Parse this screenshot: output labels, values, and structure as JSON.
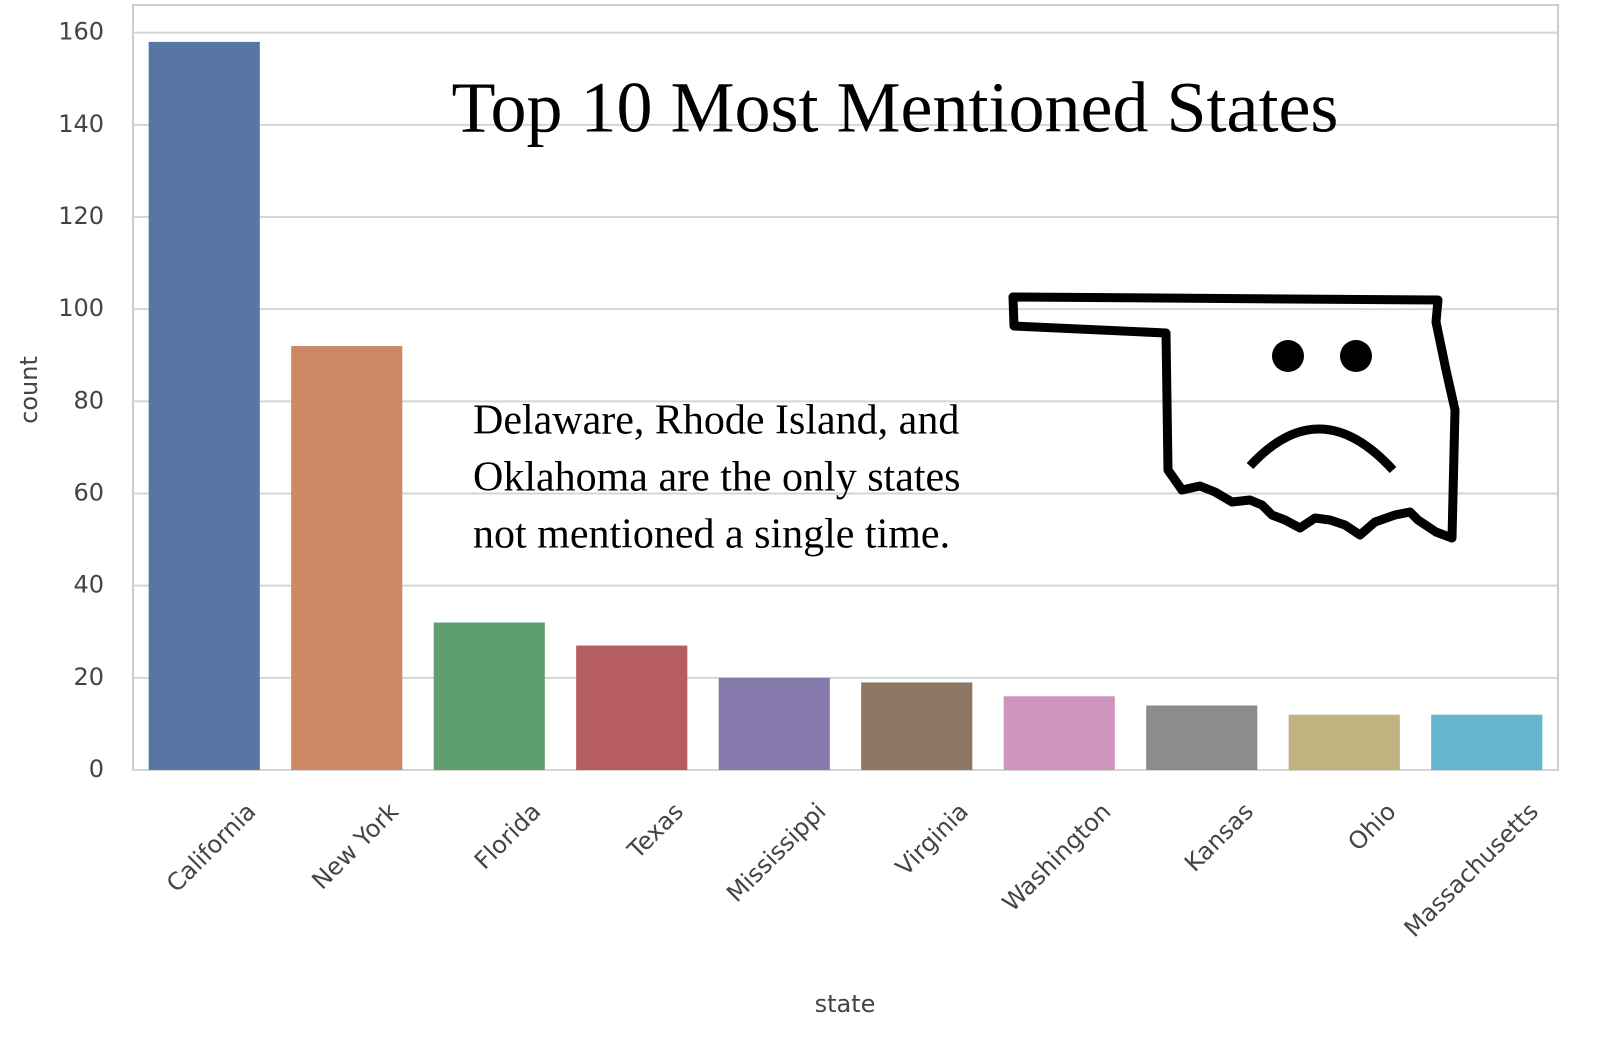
{
  "chart_data": {
    "type": "bar",
    "title": "Top 10 Most Mentioned States",
    "annotation": [
      "Delaware, Rhode Island, and",
      "Oklahoma are the only states",
      "not mentioned a single time."
    ],
    "x_label": "state",
    "y_label": "count",
    "categories": [
      "California",
      "New York",
      "Florida",
      "Texas",
      "Mississippi",
      "Virginia",
      "Washington",
      "Kansas",
      "Ohio",
      "Massachusetts"
    ],
    "values": [
      158,
      92,
      32,
      27,
      20,
      19,
      16,
      14,
      12,
      12
    ],
    "colors": [
      "#5875a4",
      "#cc8963",
      "#5f9e6e",
      "#b55d60",
      "#857aab",
      "#8d7866",
      "#d095bf",
      "#8c8c8c",
      "#c1b37f",
      "#64b5cd"
    ],
    "ylim": [
      0,
      166
    ],
    "yticks": [
      0,
      20,
      40,
      60,
      80,
      100,
      120,
      140,
      160
    ],
    "grid": true
  }
}
